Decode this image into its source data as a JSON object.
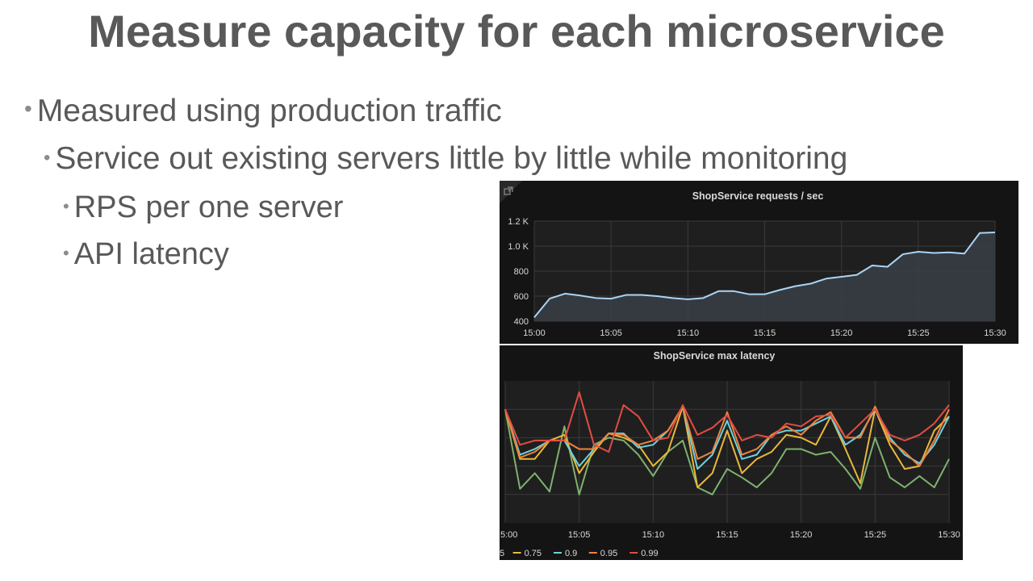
{
  "slide": {
    "title": "Measure capacity for each microservice",
    "bullets": [
      "Measured using production traffic",
      "Service out existing servers little by little while monitoring",
      "RPS per one server",
      "API latency"
    ]
  },
  "colors": {
    "text": "#595959",
    "panel_bg": "#141414",
    "plot_bg": "#1f1f20",
    "grid": "#3a3a3a",
    "rps_line": "#a9d4f5",
    "lat_0.5": "#7eb26d",
    "lat_0.75": "#eab839",
    "lat_0.9": "#6ed0e0",
    "lat_0.95": "#ef843c",
    "lat_0.99": "#e24d42"
  },
  "chart_data": [
    {
      "type": "area",
      "title": "ShopService requests / sec",
      "icon": "external-link-icon",
      "xlabel": "",
      "ylabel": "",
      "xlim": [
        0,
        30
      ],
      "ylim": [
        400,
        1200
      ],
      "grid": true,
      "x_ticks": [
        "15:00",
        "15:05",
        "15:10",
        "15:15",
        "15:20",
        "15:25",
        "15:30"
      ],
      "y_ticks": [
        "400",
        "600",
        "800",
        "1.0 K",
        "1.2 K"
      ],
      "x": [
        0,
        1,
        2,
        3,
        4,
        5,
        6,
        7,
        8,
        9,
        10,
        11,
        12,
        13,
        14,
        15,
        16,
        17,
        18,
        19,
        20,
        21,
        22,
        23,
        24,
        25,
        26,
        27,
        28,
        29,
        30
      ],
      "series": [
        {
          "values": [
            430,
            580,
            620,
            605,
            585,
            580,
            610,
            610,
            600,
            585,
            575,
            585,
            640,
            640,
            615,
            615,
            650,
            680,
            700,
            740,
            755,
            770,
            845,
            835,
            935,
            955,
            945,
            950,
            940,
            1105,
            1110
          ]
        }
      ]
    },
    {
      "type": "line",
      "title": "ShopService max latency",
      "xlabel": "",
      "ylabel": "",
      "xlim": [
        0,
        30
      ],
      "ylim": [
        0,
        100
      ],
      "grid": true,
      "x_ticks": [
        "5:00",
        "15:05",
        "15:10",
        "15:15",
        "15:20",
        "15:25",
        "15:30"
      ],
      "legend_position": "bottom-left",
      "legend": [
        "5",
        "0.75",
        "0.9",
        "0.95",
        "0.99"
      ],
      "x": [
        0,
        1,
        2,
        3,
        4,
        5,
        6,
        7,
        8,
        9,
        10,
        11,
        12,
        13,
        14,
        15,
        16,
        17,
        18,
        19,
        20,
        21,
        22,
        23,
        24,
        25,
        26,
        27,
        28,
        29,
        30
      ],
      "series": [
        {
          "name": "5",
          "values": [
            80,
            24,
            35,
            22,
            68,
            20,
            55,
            60,
            58,
            48,
            33,
            50,
            58,
            25,
            20,
            38,
            32,
            25,
            35,
            52,
            52,
            48,
            50,
            38,
            24,
            60,
            32,
            25,
            33,
            25,
            45
          ]
        },
        {
          "name": "0.75",
          "values": [
            80,
            45,
            45,
            58,
            62,
            35,
            50,
            63,
            60,
            55,
            40,
            50,
            82,
            25,
            35,
            65,
            35,
            45,
            50,
            62,
            60,
            55,
            75,
            52,
            28,
            80,
            55,
            38,
            40,
            65,
            75
          ]
        },
        {
          "name": "0.9",
          "values": [
            80,
            48,
            52,
            58,
            58,
            40,
            52,
            63,
            63,
            53,
            55,
            65,
            82,
            38,
            48,
            72,
            45,
            48,
            62,
            65,
            65,
            70,
            75,
            55,
            62,
            80,
            60,
            48,
            42,
            55,
            75
          ]
        },
        {
          "name": "0.95",
          "values": [
            80,
            46,
            50,
            58,
            58,
            52,
            52,
            63,
            62,
            55,
            58,
            65,
            82,
            45,
            50,
            78,
            48,
            52,
            62,
            68,
            62,
            72,
            78,
            60,
            60,
            82,
            58,
            50,
            40,
            58,
            80
          ]
        },
        {
          "name": "0.99",
          "values": [
            80,
            55,
            58,
            58,
            58,
            92,
            55,
            50,
            83,
            75,
            58,
            60,
            83,
            62,
            67,
            76,
            58,
            62,
            60,
            70,
            68,
            75,
            76,
            60,
            70,
            80,
            62,
            58,
            62,
            70,
            83
          ]
        }
      ]
    }
  ]
}
